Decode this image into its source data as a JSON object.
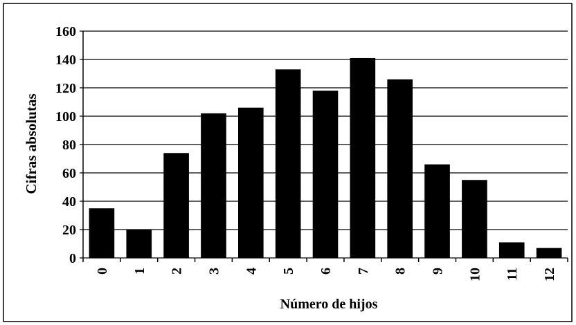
{
  "chart_data": {
    "type": "bar",
    "x_label": "Número de hijos",
    "y_label": "Cifras absolutas",
    "categories": [
      "0",
      "1",
      "2",
      "3",
      "4",
      "5",
      "6",
      "7",
      "8",
      "9",
      "10",
      "11",
      "12"
    ],
    "values": [
      35,
      20,
      74,
      102,
      106,
      133,
      118,
      141,
      126,
      66,
      55,
      11,
      7
    ],
    "color": "#000000",
    "ylim": [
      0,
      160
    ],
    "yticks": [
      0,
      20,
      40,
      60,
      80,
      100,
      120,
      140,
      160
    ],
    "grid": true
  }
}
